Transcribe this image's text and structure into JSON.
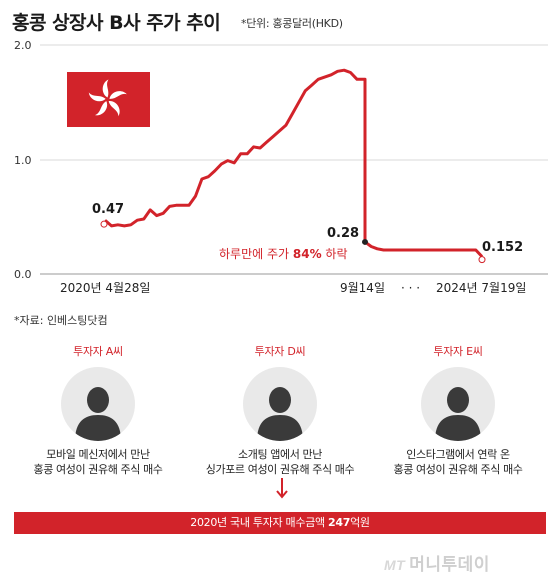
{
  "header": {
    "title": "홍콩 상장사 B사 주가 추이",
    "unit": "*단위: 홍콩달러(HKD)"
  },
  "chart_data": {
    "type": "line",
    "title": "홍콩 상장사 B사 주가 추이",
    "unit": "*단위: 홍콩달러(HKD)",
    "ylim": [
      0,
      2.0
    ],
    "yticks": [
      "2.0",
      "1.0",
      "0.0"
    ],
    "grid": true,
    "line_color": "#d2232a",
    "x_labels": [
      "2020년 4월28일",
      "9월14일",
      "· · ·",
      "2024년 7월19일"
    ],
    "series": [
      {
        "values": [
          0.47,
          0.42,
          0.43,
          0.42,
          0.43,
          0.47,
          0.48,
          0.56,
          0.51,
          0.53,
          0.59,
          0.6,
          0.6,
          0.6,
          0.68,
          0.83,
          0.85,
          0.9,
          0.96,
          0.99,
          0.97,
          1.05,
          1.05,
          1.11,
          1.1,
          1.15,
          1.2,
          1.25,
          1.3,
          1.4,
          1.5,
          1.6,
          1.65,
          1.7,
          1.72,
          1.74,
          1.77,
          1.78,
          1.76,
          1.7,
          0.28,
          0.24,
          0.22,
          0.21,
          0.21,
          0.21,
          0.21,
          0.21,
          0.21,
          0.21,
          0.21,
          0.21,
          0.21,
          0.21,
          0.21,
          0.21,
          0.21,
          0.21,
          0.21,
          0.152
        ]
      }
    ],
    "labels": {
      "start": "0.47",
      "drop": "0.28",
      "end": "0.152"
    },
    "annotation": {
      "text_before": "하루만에 주가 ",
      "highlight": "84%",
      "text_after": " 하락"
    }
  },
  "source": "*자료: 인베스팅닷컴",
  "investors": [
    {
      "name": "투자자 A씨",
      "line1": "모바일 메신저에서 만난",
      "line2": "홍콩 여성이 권유해 주식 매수",
      "icon": "person-icon"
    },
    {
      "name": "투자자 D씨",
      "line1": "소개팅 앱에서 만난",
      "line2": "싱가포르 여성이 권유해 주식 매수",
      "icon": "person-icon"
    },
    {
      "name": "투자자 E씨",
      "line1": "인스타그램에서 연락 온",
      "line2": "홍콩 여성이 권유해 주식 매수",
      "icon": "person-icon"
    }
  ],
  "banner": {
    "text_before": "2020년 국내 투자자 매수금액 ",
    "highlight": "247",
    "text_after": "억원"
  },
  "logo": {
    "mark": "MT",
    "name": "머니투데이"
  },
  "colors": {
    "accent": "#d2232a",
    "avatar_bg": "#e9e9e9",
    "flag_flower": "#ffffff"
  }
}
